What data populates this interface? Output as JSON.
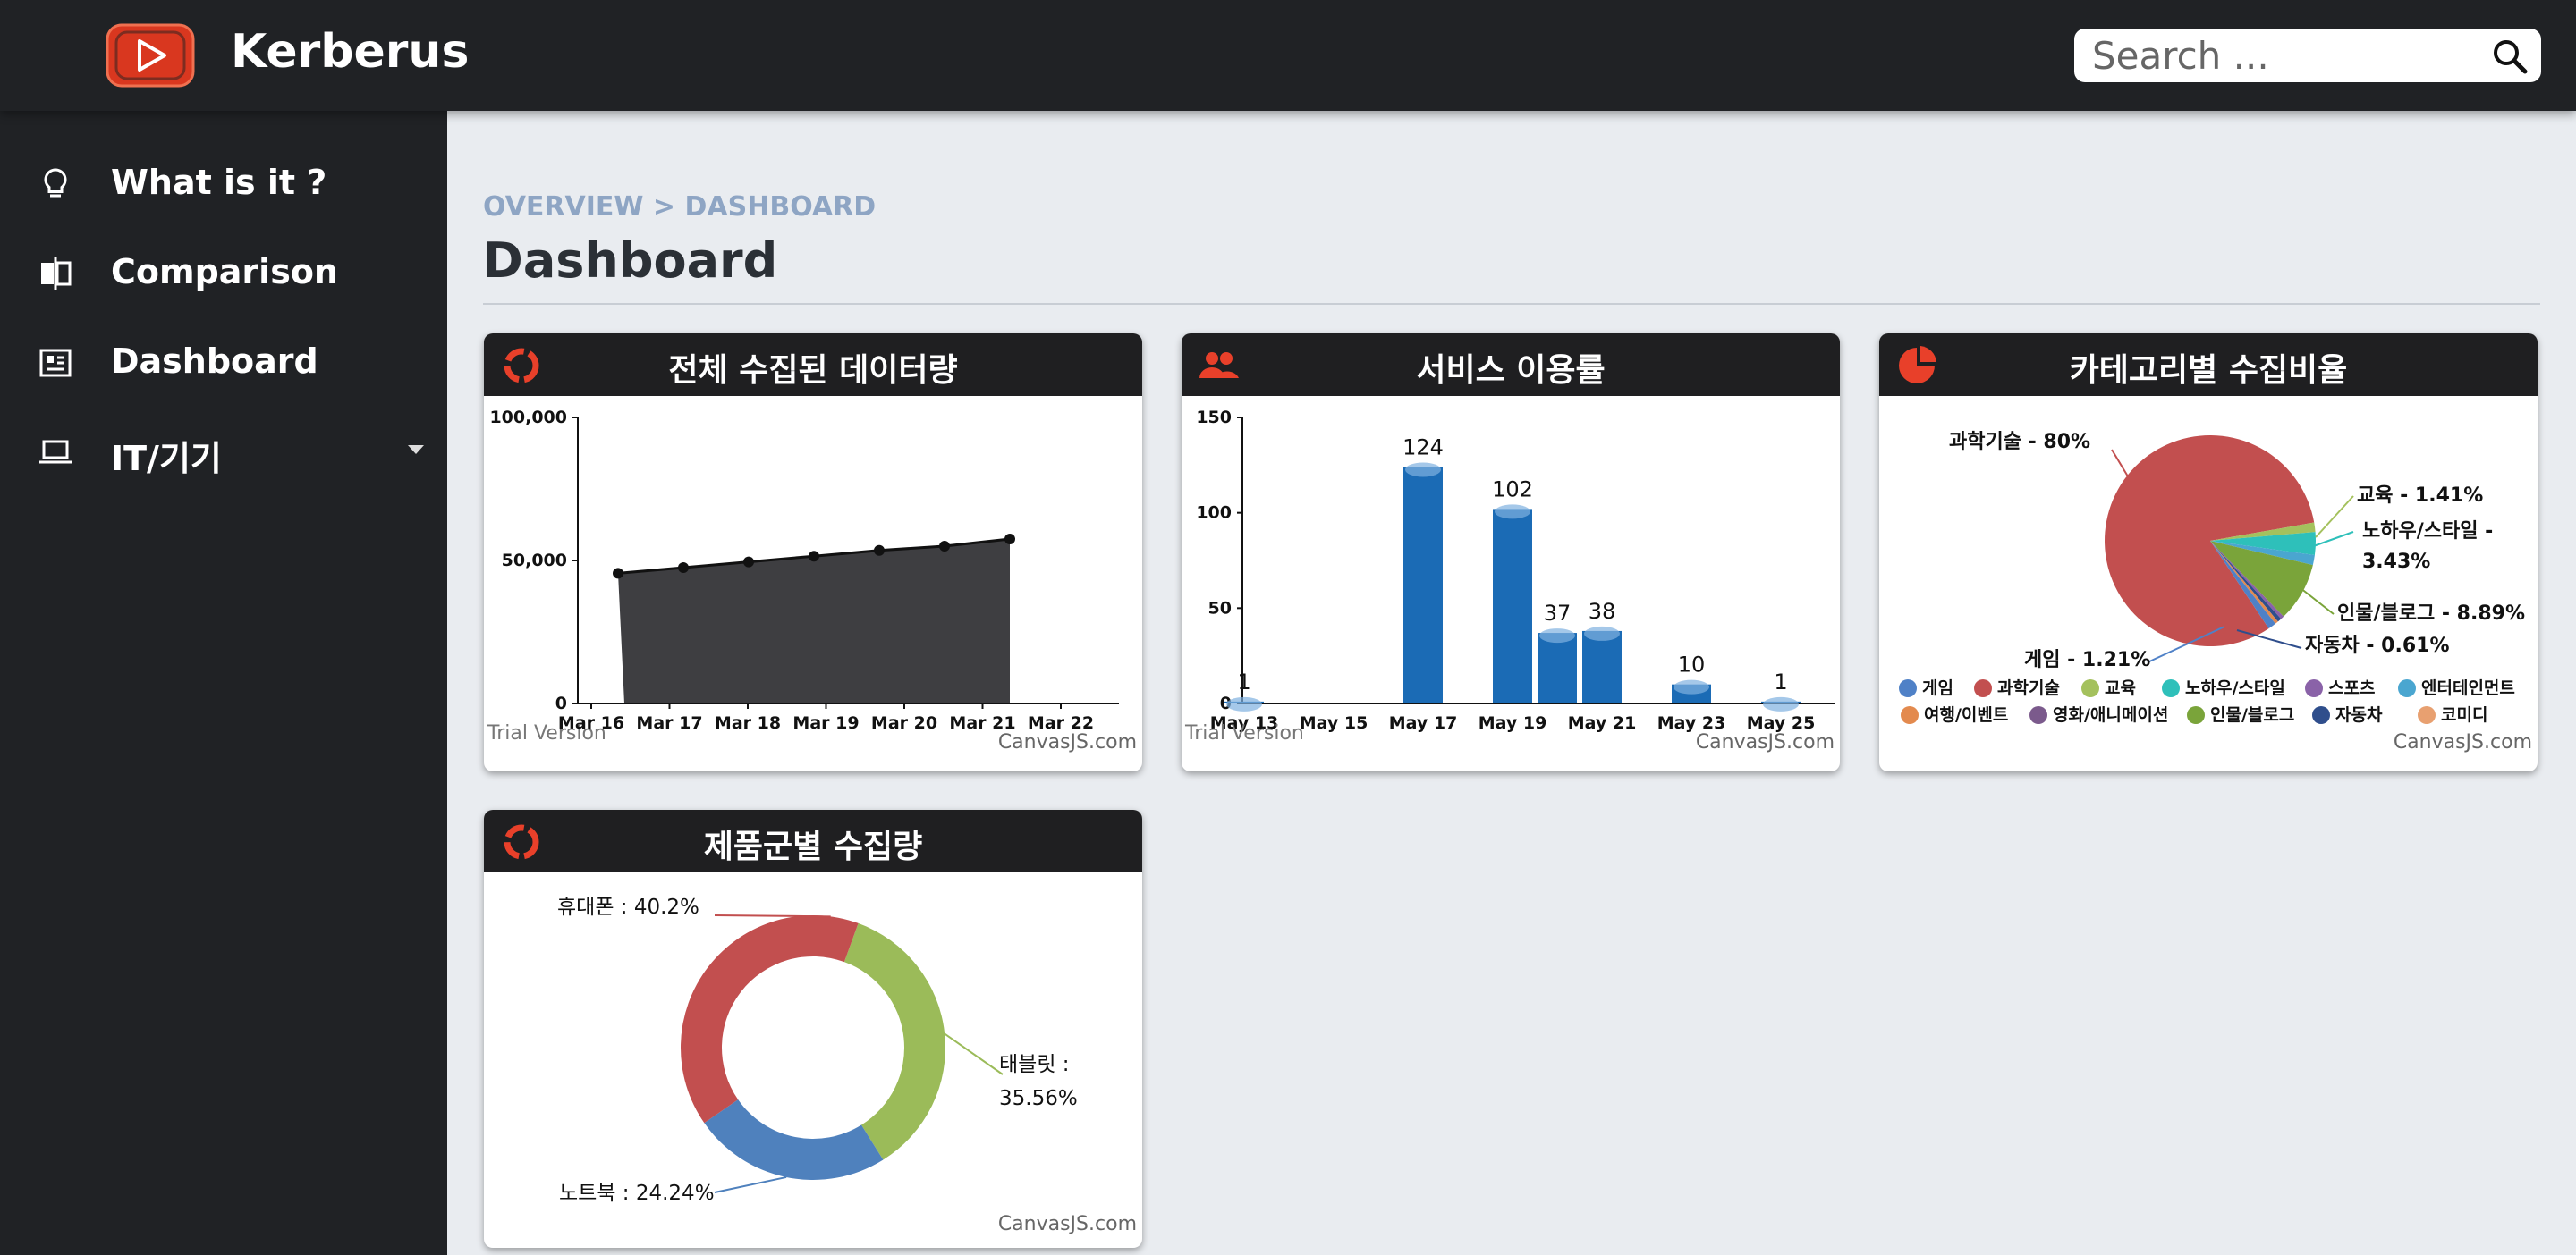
{
  "app": {
    "brand": "Kerberus",
    "search_placeholder": "Search ..."
  },
  "sidebar": {
    "items": [
      {
        "label": "What is it ?",
        "icon": "lightbulb-icon"
      },
      {
        "label": "Comparison",
        "icon": "compare-icon"
      },
      {
        "label": "Dashboard",
        "icon": "dashboard-icon"
      },
      {
        "label": "IT/기기",
        "icon": "laptop-icon"
      }
    ]
  },
  "main": {
    "breadcrumb": "OVERVIEW > DASHBOARD",
    "title": "Dashboard"
  },
  "watermarks": {
    "trial": "Trial Version",
    "canvasjs": "CanvasJS.com"
  },
  "cards": {
    "total": {
      "title": "전체 수집된 데이터량",
      "icon": "ring-chart-icon"
    },
    "usage": {
      "title": "서비스 이용률",
      "icon": "users-icon"
    },
    "category": {
      "title": "카테고리별 수집비율",
      "icon": "pie-chart-icon"
    },
    "product": {
      "title": "제품군별 수집량",
      "icon": "ring-chart-icon"
    }
  },
  "colors": {
    "accent": "#e8402a",
    "header": "#202225",
    "bar": "#1b6bb5",
    "area": "#3e3e41"
  },
  "chart_data": [
    {
      "type": "area",
      "title": "전체 수집된 데이터량",
      "categories": [
        "Mar 16",
        "Mar 17",
        "Mar 18",
        "Mar 19",
        "Mar 20",
        "Mar 21",
        "Mar 22"
      ],
      "values": [
        45500,
        47500,
        49500,
        51500,
        53500,
        55000,
        57500
      ],
      "yticks": [
        "0",
        "50,000",
        "100,000"
      ],
      "ylim": [
        0,
        100000
      ]
    },
    {
      "type": "bar",
      "title": "서비스 이용률",
      "xticks": [
        "May 13",
        "May 15",
        "May 17",
        "May 19",
        "May 21",
        "May 23",
        "May 25"
      ],
      "bars": [
        {
          "day": 13,
          "value": 1
        },
        {
          "day": 17,
          "value": 124
        },
        {
          "day": 19,
          "value": 102
        },
        {
          "day": 20,
          "value": 37
        },
        {
          "day": 21,
          "value": 38
        },
        {
          "day": 23,
          "value": 10
        },
        {
          "day": 25,
          "value": 1
        }
      ],
      "yticks": [
        "0",
        "50",
        "100",
        "150"
      ],
      "ylim": [
        0,
        150
      ]
    },
    {
      "type": "pie",
      "title": "카테고리별 수집비율",
      "slices": [
        {
          "label": "과학기술 - 80%",
          "value": 80,
          "color": "#c24f4f"
        },
        {
          "label": "교육 - 1.41%",
          "value": 1.41,
          "color": "#a4c15d"
        },
        {
          "label": "노하우/스타일 - 3.43%",
          "value": 3.43,
          "color": "#2ec0ba"
        },
        {
          "label": "",
          "value": 1.5,
          "color": "#4aa6d0"
        },
        {
          "label": "인물/블로그 - 8.89%",
          "value": 8.89,
          "color": "#7aa43a"
        },
        {
          "label": "",
          "value": 0.5,
          "color": "#8a62a8"
        },
        {
          "label": "자동차 - 0.61%",
          "value": 0.61,
          "color": "#2f4e8c"
        },
        {
          "label": "",
          "value": 0.5,
          "color": "#e38a4e"
        },
        {
          "label": "게임 - 1.21%",
          "value": 1.21,
          "color": "#4f81c7"
        }
      ],
      "legend": [
        {
          "name": "게임",
          "color": "#4f81c7"
        },
        {
          "name": "과학기술",
          "color": "#c24f4f"
        },
        {
          "name": "교육",
          "color": "#a4c15d"
        },
        {
          "name": "노하우/스타일",
          "color": "#2ec0ba"
        },
        {
          "name": "스포츠",
          "color": "#8a62a8"
        },
        {
          "name": "엔터테인먼트",
          "color": "#4aa6d0"
        },
        {
          "name": "여행/이벤트",
          "color": "#e38a4e"
        },
        {
          "name": "영화/애니메이션",
          "color": "#7b5a8c"
        },
        {
          "name": "인물/블로그",
          "color": "#7aa43a"
        },
        {
          "name": "자동차",
          "color": "#2f4e8c"
        },
        {
          "name": "코미디",
          "color": "#e8a070"
        }
      ]
    },
    {
      "type": "pie",
      "title": "제품군별 수집량",
      "slices": [
        {
          "label": "휴대폰 : 40.2%",
          "value": 40.2,
          "color": "#c24f4f"
        },
        {
          "label": "태블릿 : 35.56%",
          "value": 35.56,
          "color": "#9bbb59"
        },
        {
          "label": "노트북 : 24.24%",
          "value": 24.24,
          "color": "#4f81bd"
        }
      ]
    }
  ]
}
